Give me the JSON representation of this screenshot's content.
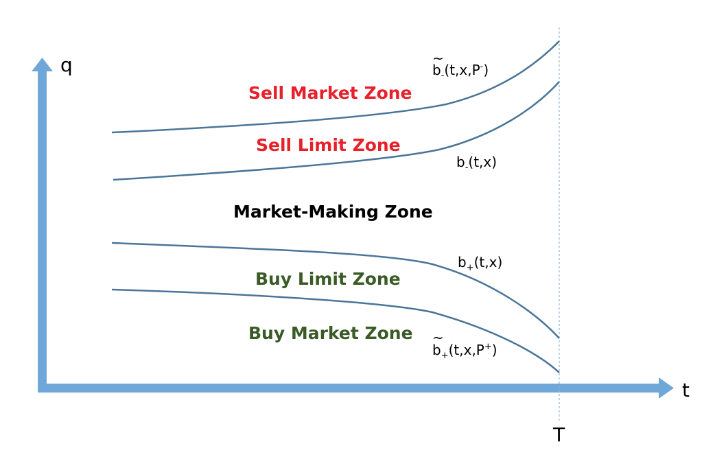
{
  "axes": {
    "y_label": "q",
    "x_label": "t",
    "terminal_label": "T"
  },
  "zones": {
    "sell_market": "Sell Market Zone",
    "sell_limit": "Sell Limit Zone",
    "market_making": "Market-Making Zone",
    "buy_limit": "Buy Limit Zone",
    "buy_market": "Buy Market Zone"
  },
  "curves": {
    "b_minus_tilde": {
      "tilde": "~",
      "base": "b",
      "sub": "-",
      "args_start": "(t,x,P",
      "sup": "-",
      "args_end": ")"
    },
    "b_minus": {
      "base": "b",
      "sub": "-",
      "args": "(t,x)"
    },
    "b_plus": {
      "base": "b",
      "sub": "+",
      "args": "(t,x)"
    },
    "b_plus_tilde": {
      "tilde": "~",
      "base": "b",
      "sub": "+",
      "args_start": "(t,x,P",
      "sup": "+",
      "args_end": ")"
    }
  },
  "colors": {
    "axis": "#6fa8d8",
    "curve": "#4a7598",
    "terminal_line": "#8fb4d6",
    "sell": "#e8202a",
    "buy": "#3a5a26",
    "neutral": "#000000"
  }
}
